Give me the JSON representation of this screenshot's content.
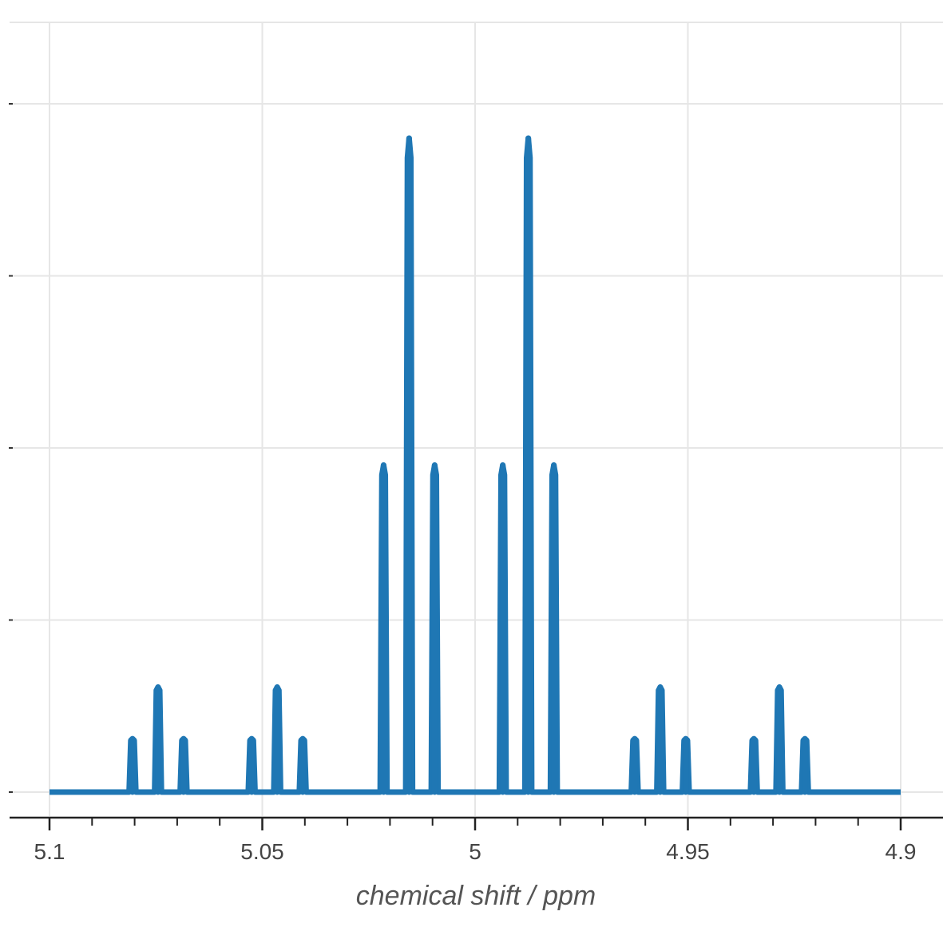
{
  "chart_data": {
    "type": "line",
    "title": "",
    "xlabel": "chemical shift / ppm",
    "ylabel": "",
    "x_reversed": true,
    "xlim": [
      5.1,
      4.9
    ],
    "ylim": [
      -0.14,
      4.6
    ],
    "x_ticks": [
      {
        "value": 5.1,
        "label": "5.1"
      },
      {
        "value": 5.05,
        "label": "5.05"
      },
      {
        "value": 5.0,
        "label": "5"
      },
      {
        "value": 4.95,
        "label": "4.95"
      },
      {
        "value": 4.9,
        "label": "4.9"
      }
    ],
    "x_minor_step": 0.01,
    "y_gridlines": [
      0,
      1,
      2,
      3,
      4
    ],
    "grid": true,
    "colors": {
      "series": "#1f77b4",
      "grid": "#e6e6e6",
      "axis": "#222222"
    },
    "series": [
      {
        "baseline": [
          5.1,
          4.9
        ],
        "peaks": [
          {
            "x": 5.0805,
            "y": 0.31
          },
          {
            "x": 5.0745,
            "y": 0.61
          },
          {
            "x": 5.0685,
            "y": 0.31
          },
          {
            "x": 5.0525,
            "y": 0.31
          },
          {
            "x": 5.0465,
            "y": 0.61
          },
          {
            "x": 5.0405,
            "y": 0.31
          },
          {
            "x": 5.0215,
            "y": 1.9
          },
          {
            "x": 5.0155,
            "y": 3.8
          },
          {
            "x": 5.0095,
            "y": 1.9
          },
          {
            "x": 4.9935,
            "y": 1.9
          },
          {
            "x": 4.9875,
            "y": 3.8
          },
          {
            "x": 4.9815,
            "y": 1.9
          },
          {
            "x": 4.9625,
            "y": 0.31
          },
          {
            "x": 4.9565,
            "y": 0.61
          },
          {
            "x": 4.9505,
            "y": 0.31
          },
          {
            "x": 4.9345,
            "y": 0.31
          },
          {
            "x": 4.9285,
            "y": 0.61
          },
          {
            "x": 4.9225,
            "y": 0.31
          }
        ]
      }
    ]
  }
}
